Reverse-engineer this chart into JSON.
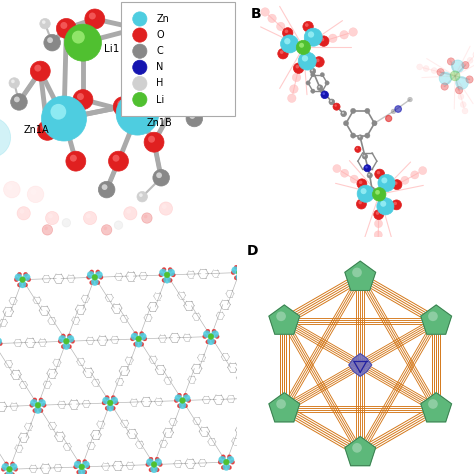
{
  "fig_width": 4.74,
  "fig_height": 4.74,
  "bg_color": "#ffffff",
  "zn_color": "#4ECDE0",
  "o_color": "#E02020",
  "c_color": "#888888",
  "n_color": "#1515B0",
  "h_color": "#D0D0D0",
  "li_color": "#50C030",
  "orange_line_color": "#D4781A",
  "green_node_color": "#5DB87A",
  "purple_node_color": "#7070C0",
  "legend_items": [
    {
      "label": "Zn",
      "color": "#4ECDE0"
    },
    {
      "label": "O",
      "color": "#E02020"
    },
    {
      "label": "C",
      "color": "#888888"
    },
    {
      "label": "N",
      "color": "#1515B0"
    },
    {
      "label": "H",
      "color": "#D0D0D0"
    },
    {
      "label": "Li",
      "color": "#50C030"
    }
  ]
}
